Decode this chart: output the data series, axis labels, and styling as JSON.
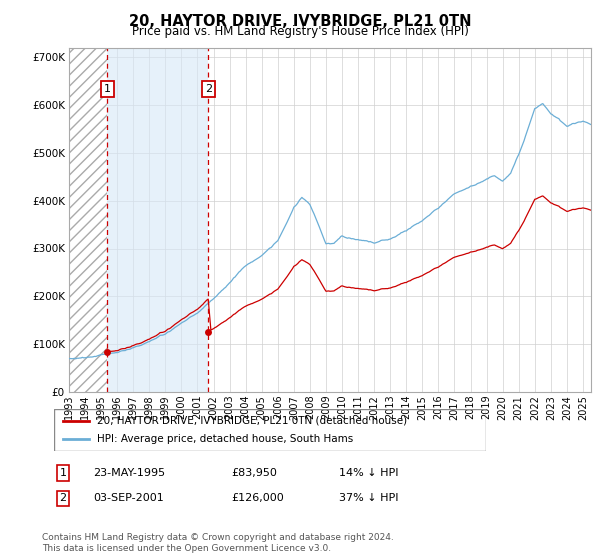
{
  "title": "20, HAYTOR DRIVE, IVYBRIDGE, PL21 0TN",
  "subtitle": "Price paid vs. HM Land Registry's House Price Index (HPI)",
  "legend_line1": "20, HAYTOR DRIVE, IVYBRIDGE, PL21 0TN (detached house)",
  "legend_line2": "HPI: Average price, detached house, South Hams",
  "footnote": "Contains HM Land Registry data © Crown copyright and database right 2024.\nThis data is licensed under the Open Government Licence v3.0.",
  "transaction1_date": "23-MAY-1995",
  "transaction1_price": "£83,950",
  "transaction1_hpi": "14% ↓ HPI",
  "transaction1_year": 1995.38,
  "transaction1_value": 83950,
  "transaction2_date": "03-SEP-2001",
  "transaction2_price": "£126,000",
  "transaction2_hpi": "37% ↓ HPI",
  "transaction2_year": 2001.67,
  "transaction2_value": 126000,
  "hpi_color": "#6baed6",
  "price_color": "#cc0000",
  "shade_color": "#d6e8f7",
  "grid_color": "#d0d0d0",
  "background_color": "#ffffff",
  "ylim": [
    0,
    720000
  ],
  "yticks": [
    0,
    100000,
    200000,
    300000,
    400000,
    500000,
    600000,
    700000
  ],
  "xlim_start": 1993.0,
  "xlim_end": 2025.5
}
